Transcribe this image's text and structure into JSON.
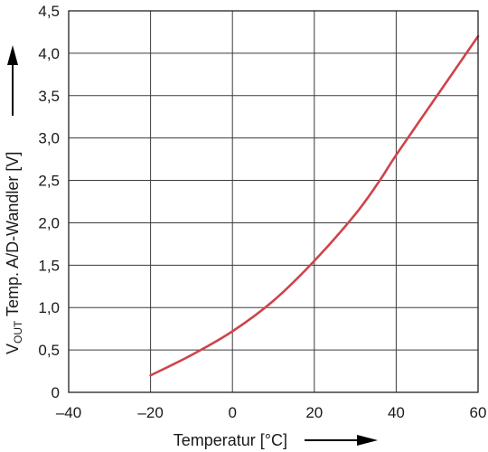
{
  "chart_data": {
    "type": "line",
    "xlabel": "Temperatur [°C]",
    "ylabel_main": "V",
    "ylabel_sub": "OUT",
    "ylabel_rest": " Temp. A/D-Wandler [V]",
    "xlim": [
      -40,
      60
    ],
    "ylim": [
      0,
      4.5
    ],
    "x_ticks": [
      -40,
      -20,
      0,
      20,
      40,
      60
    ],
    "x_tick_labels": [
      "–40",
      "–20",
      "0",
      "20",
      "40",
      "60"
    ],
    "y_ticks": [
      0,
      0.5,
      1.0,
      1.5,
      2.0,
      2.5,
      3.0,
      3.5,
      4.0,
      4.5
    ],
    "y_tick_labels": [
      "0",
      "0,5",
      "1,0",
      "1,5",
      "2,0",
      "2,5",
      "3,0",
      "3,5",
      "4,0",
      "4,5"
    ],
    "grid": true,
    "line_color": "#d0434a",
    "series": [
      {
        "x": [
          -20,
          -10,
          0,
          10,
          20,
          30,
          36,
          40,
          50,
          60
        ],
        "y": [
          0.2,
          0.44,
          0.72,
          1.08,
          1.55,
          2.1,
          2.5,
          2.8,
          3.5,
          4.2
        ]
      }
    ]
  }
}
